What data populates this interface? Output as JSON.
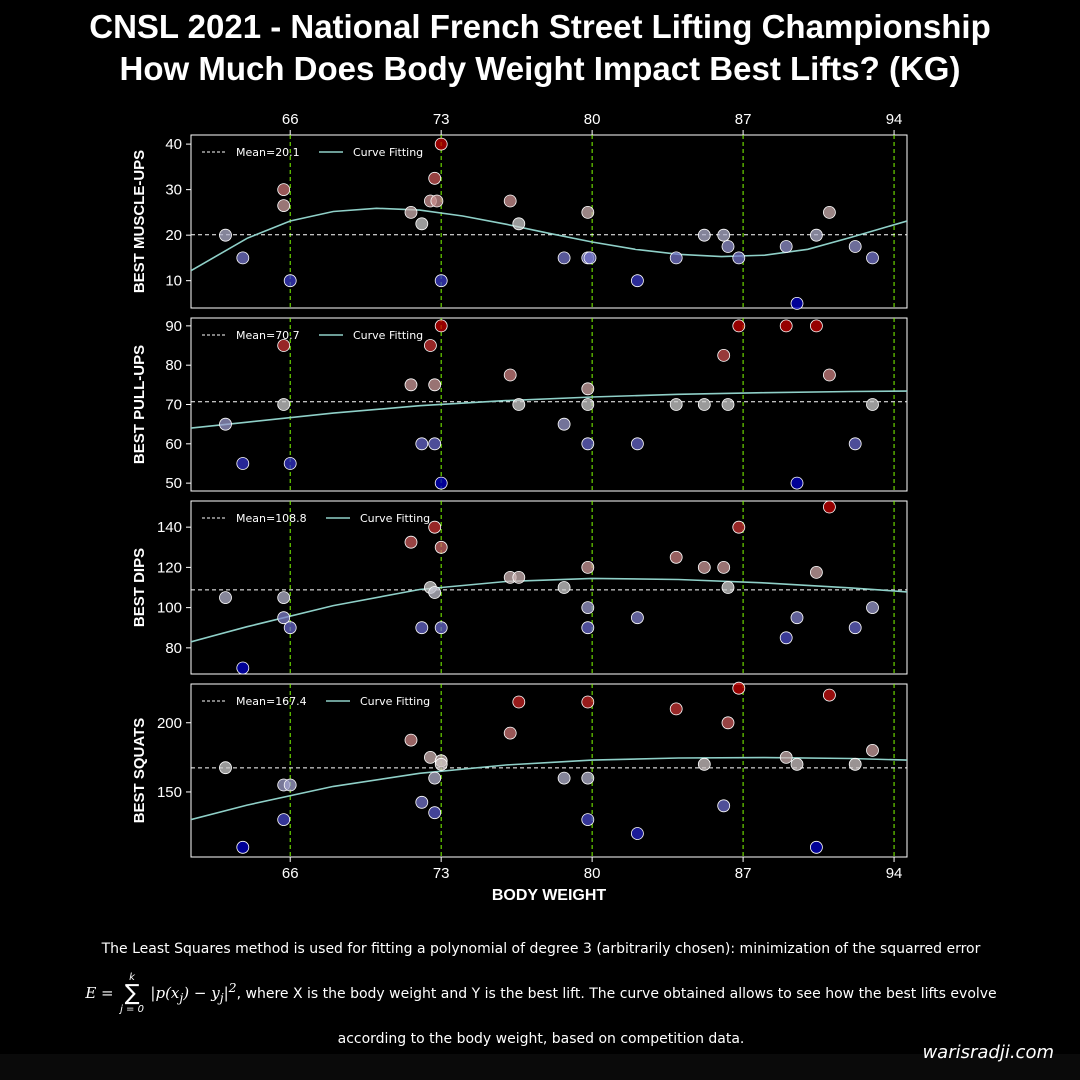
{
  "title": {
    "line1": "CNSL 2021 - National French Street Lifting Championship",
    "line2": "How Much Does Body Weight Impact Best Lifts? (KG)"
  },
  "caption": {
    "line1": "The Least Squares method is used for fitting a polynomial of degree 3 (arbitrarily chosen): minimization of the squarred error",
    "formula_lhs": "E =",
    "sum_upper": "k",
    "sum_lower": "j = 0",
    "formula_rhs": "|p(x",
    "line2_text": ", where X is the body weight and Y is the best lift. The curve obtained allows to see how the best lifts evolve",
    "line3": "according to the body weight, based on competition data."
  },
  "watermark": "warisradji.com",
  "colors": {
    "background": "#000000",
    "curve": "#8fd0c8",
    "vline": "#7fff00",
    "point_high": "#c80000",
    "point_low": "#0000c8"
  },
  "chart_data": {
    "type": "scatter",
    "xlabel": "BODY WEIGHT",
    "xticks": [
      66,
      73,
      80,
      87,
      94
    ],
    "xlim": [
      61.4,
      94.6
    ],
    "vlines": [
      66,
      73,
      80,
      87,
      94
    ],
    "panels": [
      {
        "ylabel": "BEST MUSCLE-UPS",
        "ylim": [
          4,
          42
        ],
        "yticks": [
          10,
          20,
          30,
          40
        ],
        "mean": 20.1,
        "legend": [
          "Mean=20.1",
          "Curve Fitting"
        ],
        "points": [
          [
            63,
            20
          ],
          [
            63.8,
            15
          ],
          [
            65.7,
            30
          ],
          [
            65.7,
            26.5
          ],
          [
            66,
            10
          ],
          [
            71.6,
            25
          ],
          [
            72.1,
            22.5
          ],
          [
            72.5,
            27.5
          ],
          [
            72.7,
            32.5
          ],
          [
            72.8,
            27.5
          ],
          [
            73,
            40
          ],
          [
            73,
            10
          ],
          [
            76.2,
            27.5
          ],
          [
            76.6,
            22.5
          ],
          [
            78.7,
            15
          ],
          [
            79.8,
            25
          ],
          [
            79.8,
            15
          ],
          [
            79.9,
            15
          ],
          [
            82.1,
            10
          ],
          [
            83.9,
            15
          ],
          [
            85.2,
            20
          ],
          [
            86.1,
            20
          ],
          [
            86.3,
            17.5
          ],
          [
            86.8,
            15
          ],
          [
            89,
            17.5
          ],
          [
            89.5,
            5
          ],
          [
            90.4,
            20
          ],
          [
            91,
            25
          ],
          [
            92.2,
            17.5
          ],
          [
            93,
            15
          ]
        ],
        "curve": [
          [
            61.4,
            12.2
          ],
          [
            64,
            19.3
          ],
          [
            66,
            23.1
          ],
          [
            68,
            25.2
          ],
          [
            70,
            25.9
          ],
          [
            72,
            25.5
          ],
          [
            74,
            24.2
          ],
          [
            76,
            22.4
          ],
          [
            78,
            20.4
          ],
          [
            80,
            18.5
          ],
          [
            82,
            16.9
          ],
          [
            84,
            15.8
          ],
          [
            86,
            15.3
          ],
          [
            88,
            15.6
          ],
          [
            90,
            16.9
          ],
          [
            92,
            19.5
          ],
          [
            94.6,
            23.1
          ]
        ]
      },
      {
        "ylabel": "BEST PULL-UPS",
        "ylim": [
          48,
          92
        ],
        "yticks": [
          50,
          60,
          70,
          80,
          90
        ],
        "mean": 70.7,
        "legend": [
          "Mean=70.7",
          "Curve Fitting"
        ],
        "points": [
          [
            63,
            65
          ],
          [
            63.8,
            55
          ],
          [
            65.7,
            85
          ],
          [
            65.7,
            70
          ],
          [
            66,
            55
          ],
          [
            71.6,
            75
          ],
          [
            72.1,
            60
          ],
          [
            72.5,
            85
          ],
          [
            72.7,
            75
          ],
          [
            72.7,
            60
          ],
          [
            73,
            90
          ],
          [
            73,
            50
          ],
          [
            76.2,
            77.5
          ],
          [
            76.6,
            70
          ],
          [
            78.7,
            65
          ],
          [
            79.8,
            74
          ],
          [
            79.8,
            70
          ],
          [
            79.8,
            60
          ],
          [
            82.1,
            60
          ],
          [
            83.9,
            70
          ],
          [
            85.2,
            70
          ],
          [
            86.1,
            82.5
          ],
          [
            86.3,
            70
          ],
          [
            86.8,
            90
          ],
          [
            89,
            90
          ],
          [
            89.5,
            50
          ],
          [
            90.4,
            90
          ],
          [
            91,
            77.5
          ],
          [
            92.2,
            60
          ],
          [
            93,
            70
          ]
        ],
        "curve": [
          [
            61.4,
            64
          ],
          [
            64,
            65.5
          ],
          [
            68,
            67.8
          ],
          [
            72,
            69.7
          ],
          [
            76,
            71
          ],
          [
            80,
            71.9
          ],
          [
            84,
            72.6
          ],
          [
            88,
            73
          ],
          [
            92,
            73.3
          ],
          [
            94.6,
            73.4
          ]
        ]
      },
      {
        "ylabel": "BEST DIPS",
        "ylim": [
          67,
          153
        ],
        "yticks": [
          80,
          100,
          120,
          140
        ],
        "mean": 108.8,
        "legend": [
          "Mean=108.8",
          "Curve Fitting"
        ],
        "points": [
          [
            63,
            105
          ],
          [
            63.8,
            70
          ],
          [
            65.7,
            105
          ],
          [
            65.7,
            95
          ],
          [
            66,
            90
          ],
          [
            71.6,
            132.5
          ],
          [
            72.1,
            90
          ],
          [
            72.5,
            110
          ],
          [
            72.7,
            107.5
          ],
          [
            72.7,
            140
          ],
          [
            73,
            130
          ],
          [
            73,
            90
          ],
          [
            76.2,
            115
          ],
          [
            76.6,
            115
          ],
          [
            78.7,
            110
          ],
          [
            79.8,
            120
          ],
          [
            79.8,
            100
          ],
          [
            79.8,
            90
          ],
          [
            82.1,
            95
          ],
          [
            83.9,
            125
          ],
          [
            85.2,
            120
          ],
          [
            86.1,
            120
          ],
          [
            86.3,
            110
          ],
          [
            86.8,
            140
          ],
          [
            89,
            85
          ],
          [
            89.5,
            95
          ],
          [
            90.4,
            117.5
          ],
          [
            91,
            150
          ],
          [
            92.2,
            90
          ],
          [
            93,
            100
          ]
        ],
        "curve": [
          [
            61.4,
            83
          ],
          [
            64,
            90.5
          ],
          [
            68,
            101
          ],
          [
            72,
            109
          ],
          [
            76,
            113
          ],
          [
            80,
            114.5
          ],
          [
            84,
            114
          ],
          [
            88,
            112.3
          ],
          [
            92,
            109.8
          ],
          [
            94.6,
            107.8
          ]
        ]
      },
      {
        "ylabel": "BEST SQUATS",
        "ylim": [
          103,
          228
        ],
        "yticks": [
          150,
          200
        ],
        "mean": 167.4,
        "legend": [
          "Mean=167.4",
          "Curve Fitting"
        ],
        "points": [
          [
            63,
            167.5
          ],
          [
            63.8,
            110
          ],
          [
            65.7,
            155
          ],
          [
            65.7,
            130
          ],
          [
            66,
            155
          ],
          [
            71.6,
            187.5
          ],
          [
            72.1,
            142.5
          ],
          [
            72.5,
            175
          ],
          [
            72.7,
            135
          ],
          [
            72.7,
            160
          ],
          [
            73,
            172.5
          ],
          [
            73,
            170
          ],
          [
            76.2,
            192.5
          ],
          [
            76.6,
            215
          ],
          [
            78.7,
            160
          ],
          [
            79.8,
            215
          ],
          [
            79.8,
            160
          ],
          [
            79.8,
            130
          ],
          [
            82.1,
            120
          ],
          [
            83.9,
            210
          ],
          [
            85.2,
            170
          ],
          [
            86.1,
            140
          ],
          [
            86.3,
            200
          ],
          [
            86.8,
            225
          ],
          [
            89,
            175
          ],
          [
            89.5,
            170
          ],
          [
            90.4,
            110
          ],
          [
            91,
            220
          ],
          [
            92.2,
            170
          ],
          [
            93,
            180
          ]
        ],
        "curve": [
          [
            61.4,
            130
          ],
          [
            64,
            140.5
          ],
          [
            68,
            154
          ],
          [
            72,
            163.5
          ],
          [
            76,
            169.5
          ],
          [
            80,
            173
          ],
          [
            84,
            174.5
          ],
          [
            88,
            174.8
          ],
          [
            92,
            174.2
          ],
          [
            94.6,
            173
          ]
        ]
      }
    ]
  }
}
